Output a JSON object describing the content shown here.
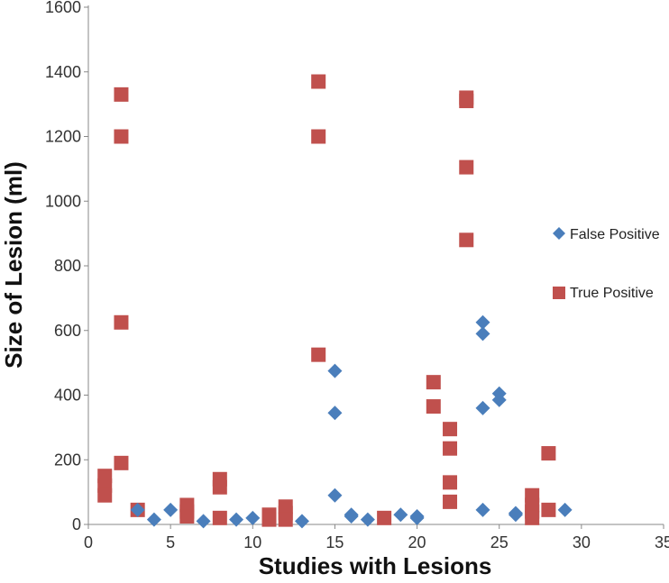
{
  "chart_data": {
    "type": "scatter",
    "title": "",
    "xlabel": "Studies with Lesions",
    "ylabel": "Size of Lesion (ml)",
    "xlim": [
      0,
      35
    ],
    "ylim": [
      0,
      1600
    ],
    "xticks": [
      0,
      5,
      10,
      15,
      20,
      25,
      30,
      35
    ],
    "yticks": [
      0,
      200,
      400,
      600,
      800,
      1000,
      1200,
      1400,
      1600
    ],
    "grid": false,
    "legend_position": "right",
    "series": [
      {
        "name": "False Positive",
        "marker": "diamond",
        "color": "#4a7ebb",
        "points": [
          [
            3,
            45
          ],
          [
            4,
            15
          ],
          [
            5,
            45
          ],
          [
            7,
            10
          ],
          [
            9,
            15
          ],
          [
            10,
            20
          ],
          [
            13,
            10
          ],
          [
            15,
            90
          ],
          [
            15,
            345
          ],
          [
            15,
            475
          ],
          [
            16,
            30
          ],
          [
            16,
            25
          ],
          [
            17,
            15
          ],
          [
            19,
            30
          ],
          [
            20,
            25
          ],
          [
            20,
            20
          ],
          [
            24,
            590
          ],
          [
            24,
            625
          ],
          [
            24,
            360
          ],
          [
            24,
            45
          ],
          [
            25,
            405
          ],
          [
            25,
            385
          ],
          [
            26,
            30
          ],
          [
            26,
            35
          ],
          [
            29,
            45
          ]
        ]
      },
      {
        "name": "True Positive",
        "marker": "square",
        "color": "#c0504d",
        "points": [
          [
            1,
            150
          ],
          [
            1,
            120
          ],
          [
            1,
            90
          ],
          [
            2,
            1330
          ],
          [
            2,
            1200
          ],
          [
            2,
            625
          ],
          [
            2,
            190
          ],
          [
            3,
            45
          ],
          [
            6,
            60
          ],
          [
            6,
            40
          ],
          [
            6,
            25
          ],
          [
            8,
            140
          ],
          [
            8,
            115
          ],
          [
            8,
            20
          ],
          [
            11,
            30
          ],
          [
            11,
            15
          ],
          [
            12,
            55
          ],
          [
            12,
            35
          ],
          [
            12,
            15
          ],
          [
            14,
            1370
          ],
          [
            14,
            1200
          ],
          [
            14,
            525
          ],
          [
            18,
            20
          ],
          [
            21,
            440
          ],
          [
            21,
            365
          ],
          [
            22,
            295
          ],
          [
            22,
            235
          ],
          [
            22,
            130
          ],
          [
            22,
            70
          ],
          [
            23,
            1320
          ],
          [
            23,
            1310
          ],
          [
            23,
            1105
          ],
          [
            23,
            880
          ],
          [
            27,
            90
          ],
          [
            27,
            60
          ],
          [
            27,
            40
          ],
          [
            27,
            20
          ],
          [
            28,
            220
          ],
          [
            28,
            45
          ]
        ]
      }
    ]
  }
}
